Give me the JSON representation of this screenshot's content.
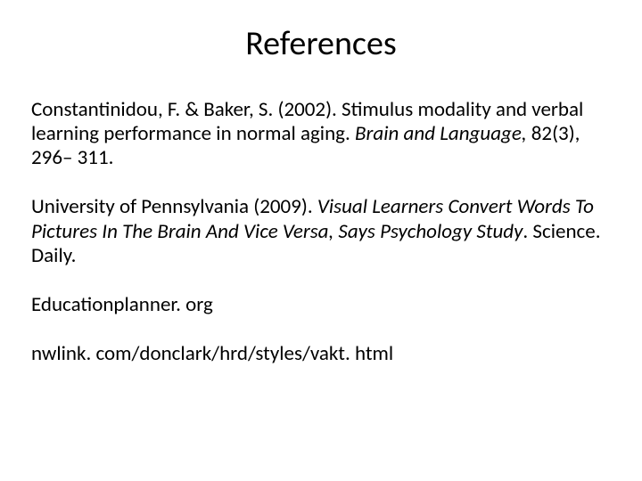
{
  "title": "References",
  "refs": {
    "r1_a": "Constantinidou, F. & Baker, S. (2002). Stimulus modality and verbal learning performance in normal aging. ",
    "r1_b": "Brain and Language,",
    "r1_c": " 82(3), 296– 311.",
    "r2_a": "University of Pennsylvania (2009). ",
    "r2_b": "Visual Learners Convert Words To Pictures In The Brain And Vice Versa, Says Psychology Study",
    "r2_c": ". Science. Daily.",
    "r3": "Educationplanner. org",
    "r4": "nwlink. com/donclark/hrd/styles/vakt. html"
  },
  "style": {
    "background_color": "#ffffff",
    "text_color": "#000000",
    "title_fontsize": 38,
    "body_fontsize": 23,
    "font_family": "Calibri"
  }
}
